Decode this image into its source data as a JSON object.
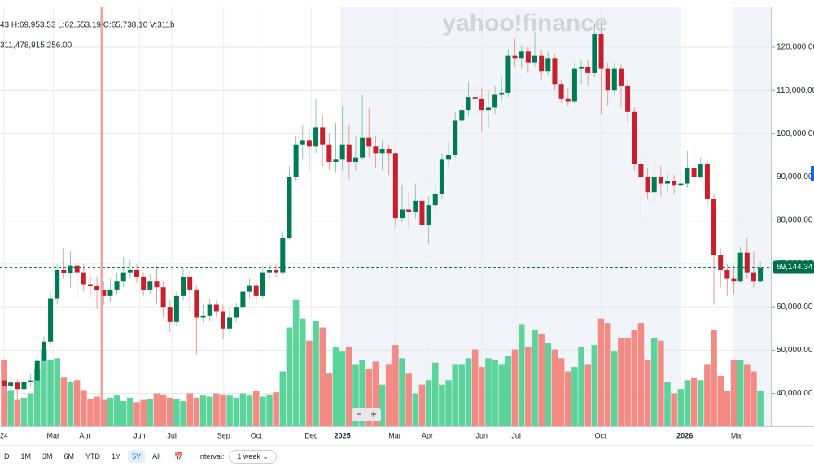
{
  "chart_data": {
    "type": "candlestick",
    "watermark": "yahoo!finance",
    "ohlc_header": "43  H:69,953.53  L:62,553.19  C:65,738.10  V:311b",
    "volume_header": "311,478,915,256.00",
    "ylim": [
      32400,
      129400
    ],
    "yticks": [
      {
        "value": 40000,
        "label": "40,000.00"
      },
      {
        "value": 50000,
        "label": "50,000.00"
      },
      {
        "value": 60000,
        "label": "60,000.00"
      },
      {
        "value": 70000,
        "label": "70,000.00"
      },
      {
        "value": 80000,
        "label": "80,000.00"
      },
      {
        "value": 90000,
        "label": "90,000.00"
      },
      {
        "value": 100000,
        "label": "100,000.00"
      },
      {
        "value": 110000,
        "label": "110,000.00"
      },
      {
        "value": 120000,
        "label": "120,000.00"
      }
    ],
    "xticks": [
      {
        "value": 0,
        "label": "24"
      },
      {
        "value": 7.4,
        "label": "Mar"
      },
      {
        "value": 12.2,
        "label": "Apr"
      },
      {
        "value": 20.4,
        "label": "Jun"
      },
      {
        "value": 25.3,
        "label": "Jul"
      },
      {
        "value": 33.1,
        "label": "Sep"
      },
      {
        "value": 38,
        "label": "Oct"
      },
      {
        "value": 46.3,
        "label": "Dec"
      },
      {
        "value": 51,
        "label": "2025"
      },
      {
        "value": 58.9,
        "label": "Mar"
      },
      {
        "value": 63.8,
        "label": "Apr"
      },
      {
        "value": 72,
        "label": "Jun"
      },
      {
        "value": 77.2,
        "label": "Jul"
      },
      {
        "value": 89.9,
        "label": "Oct"
      },
      {
        "value": 102.6,
        "label": "2026"
      },
      {
        "value": 110.5,
        "label": "Mar"
      }
    ],
    "last_price": {
      "value": 69144.34,
      "label": "69,144.34"
    },
    "up_color": "#007a55",
    "down_color": "#c8202a",
    "volume_up_color": "#5cd39a",
    "volume_down_color": "#f48a84",
    "open": [
      43000,
      41800,
      42500,
      41000,
      42600,
      43000,
      47500,
      52000,
      62000,
      68500,
      67800,
      69500,
      68000,
      65200,
      64800,
      63800,
      62500,
      64000,
      66000,
      68000,
      68500,
      67000,
      64000,
      66000,
      64500,
      60000,
      56500,
      62500,
      67000,
      64000,
      57500,
      58000,
      60500,
      59000,
      55000,
      57500,
      60000,
      63500,
      65000,
      62500,
      68000,
      68500,
      68000,
      76000,
      90000,
      97500,
      98500,
      97000,
      101500,
      97500,
      93500,
      94000,
      97500,
      93500,
      94500,
      99000,
      97000,
      95500,
      96500,
      95500,
      80500,
      82500,
      82000,
      84500,
      79000,
      83500,
      86000,
      94000,
      95000,
      103000,
      105500,
      108500,
      108000,
      105500,
      106000,
      109000,
      109500,
      118000,
      117500,
      119000,
      116500,
      118000,
      114500,
      117500,
      111500,
      108000,
      107500,
      115000,
      115500,
      114000,
      123000,
      115000,
      110000,
      115000,
      111000,
      105000,
      93000,
      90000,
      86500,
      90000,
      88500,
      89000,
      88000,
      88500,
      92000,
      90000,
      93000,
      85000,
      72000,
      68500,
      66500,
      66000,
      72500,
      68000,
      66000
    ],
    "high": [
      44500,
      43800,
      43200,
      43900,
      44500,
      48800,
      53200,
      63500,
      70000,
      73500,
      72800,
      71200,
      70000,
      67200,
      66800,
      66000,
      66500,
      67800,
      71500,
      71000,
      70000,
      68000,
      67500,
      69500,
      66000,
      61500,
      63500,
      69000,
      68500,
      65000,
      60500,
      61800,
      61500,
      60500,
      60000,
      61000,
      64500,
      66500,
      66000,
      69500,
      69800,
      70000,
      77500,
      92500,
      99500,
      102000,
      101000,
      108000,
      104500,
      100000,
      102500,
      106500,
      102000,
      99500,
      109000,
      106000,
      99500,
      98500,
      97500,
      96000,
      88000,
      86500,
      88500,
      86000,
      85500,
      88000,
      95500,
      98000,
      105000,
      107500,
      112000,
      111000,
      110500,
      110000,
      111000,
      113000,
      119500,
      122000,
      120500,
      120000,
      123500,
      119500,
      119000,
      118500,
      112500,
      110500,
      116500,
      117000,
      117000,
      125500,
      126000,
      116500,
      116500,
      116000,
      112500,
      106000,
      95500,
      92000,
      93500,
      92500,
      91000,
      90500,
      91500,
      96000,
      98000,
      94500,
      94000,
      86000,
      73500,
      70000,
      69500,
      74000,
      76000,
      73000,
      70500
    ],
    "low": [
      39500,
      40200,
      38500,
      39800,
      41500,
      42500,
      46800,
      51000,
      60500,
      66500,
      64500,
      61500,
      63500,
      62200,
      59500,
      60500,
      61200,
      62800,
      64500,
      66500,
      65500,
      62500,
      63000,
      60500,
      57500,
      54200,
      55500,
      61500,
      58500,
      49000,
      56500,
      56800,
      57500,
      52500,
      53500,
      56500,
      58500,
      62000,
      60500,
      62000,
      66500,
      66800,
      67500,
      75500,
      89000,
      94000,
      91000,
      95500,
      92500,
      91500,
      91000,
      91500,
      89500,
      91500,
      94000,
      94500,
      92000,
      91500,
      90500,
      78500,
      79500,
      78000,
      80500,
      76500,
      74500,
      82000,
      85000,
      92500,
      94500,
      101500,
      104000,
      104500,
      100500,
      101500,
      104500,
      107500,
      108500,
      115500,
      115000,
      114000,
      115500,
      112500,
      113500,
      110000,
      107000,
      106500,
      107000,
      111500,
      111000,
      113000,
      104500,
      106500,
      109000,
      106000,
      102500,
      91500,
      80000,
      85000,
      84000,
      85500,
      86500,
      86000,
      86500,
      87500,
      87000,
      89500,
      83000,
      60500,
      64500,
      62500,
      63000,
      65500,
      66500,
      64500,
      65500
    ],
    "close": [
      41800,
      42500,
      41000,
      42600,
      43000,
      47500,
      52000,
      62000,
      68500,
      67800,
      69500,
      68000,
      65200,
      64800,
      63800,
      62500,
      64000,
      66000,
      68000,
      68500,
      67000,
      64000,
      66000,
      64500,
      60000,
      56500,
      62500,
      67000,
      64000,
      57500,
      58000,
      60500,
      59000,
      55000,
      57500,
      60000,
      63500,
      65000,
      62500,
      68000,
      68500,
      68000,
      76000,
      90000,
      97500,
      98500,
      97000,
      101500,
      97500,
      93500,
      94000,
      97500,
      93500,
      94500,
      99000,
      97000,
      95500,
      96500,
      95500,
      80500,
      82500,
      82000,
      84500,
      79000,
      83500,
      86000,
      94000,
      95000,
      103000,
      105500,
      108500,
      108000,
      105500,
      106000,
      109000,
      109500,
      118000,
      117500,
      119000,
      116500,
      118000,
      114500,
      117500,
      111500,
      108000,
      107500,
      115000,
      115500,
      114000,
      123000,
      115000,
      110000,
      115000,
      111000,
      105000,
      93000,
      90000,
      86500,
      90000,
      88500,
      89000,
      88000,
      88500,
      92000,
      90000,
      93000,
      85000,
      72000,
      68500,
      66500,
      66000,
      72500,
      68000,
      66000,
      69144.34
    ],
    "volume": [
      600,
      330,
      240,
      260,
      300,
      520,
      700,
      600,
      620,
      450,
      400,
      420,
      330,
      250,
      270,
      240,
      260,
      280,
      230,
      260,
      220,
      240,
      250,
      300,
      290,
      260,
      250,
      230,
      300,
      260,
      280,
      270,
      300,
      290,
      280,
      260,
      300,
      280,
      320,
      270,
      290,
      310,
      500,
      900,
      1150,
      980,
      780,
      960,
      900,
      480,
      720,
      680,
      720,
      560,
      600,
      520,
      590,
      380,
      560,
      740,
      620,
      480,
      300,
      380,
      420,
      580,
      380,
      420,
      560,
      560,
      620,
      700,
      540,
      620,
      600,
      560,
      640,
      700,
      930,
      720,
      880,
      840,
      760,
      700,
      620,
      500,
      540,
      720,
      560,
      740,
      980,
      940,
      680,
      800,
      800,
      880,
      940,
      600,
      800,
      780,
      400,
      300,
      340,
      420,
      440,
      420,
      560,
      880,
      460,
      320,
      600,
      600,
      560,
      500,
      320
    ]
  },
  "toolbar": {
    "ranges": [
      "D",
      "1M",
      "3M",
      "6M",
      "YTD",
      "1Y",
      "5Y",
      "All"
    ],
    "active": "5Y",
    "interval_label": "Interval:",
    "interval": "1 week"
  }
}
